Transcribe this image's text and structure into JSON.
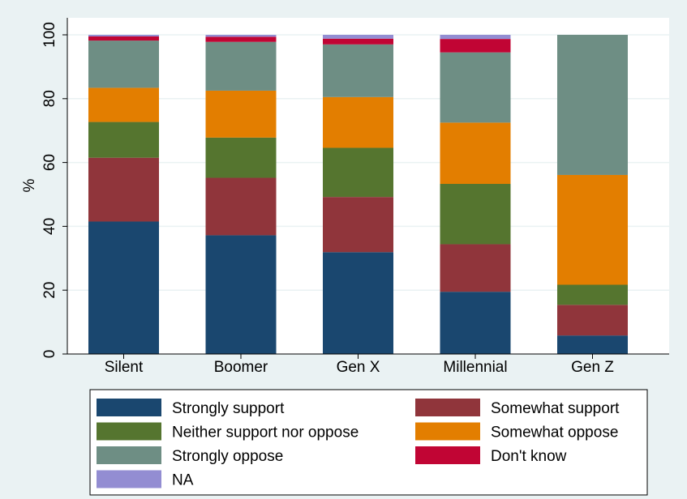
{
  "chart_data": {
    "type": "bar",
    "stacked": true,
    "categories": [
      "Silent",
      "Boomer",
      "Gen X",
      "Millennial",
      "Gen Z"
    ],
    "ylabel": "%",
    "ylim": [
      0,
      100
    ],
    "yticks": [
      0,
      20,
      40,
      60,
      80,
      100
    ],
    "grid": true,
    "legend_position": "bottom",
    "series": [
      {
        "name": "Strongly support",
        "color": "#1a476f",
        "values": [
          41.5,
          37.2,
          31.9,
          19.5,
          5.8
        ]
      },
      {
        "name": "Somewhat support",
        "color": "#90353b",
        "values": [
          20.0,
          18.0,
          17.3,
          14.9,
          9.6
        ]
      },
      {
        "name": "Neither support nor oppose",
        "color": "#55752f",
        "values": [
          11.2,
          12.6,
          15.4,
          18.9,
          6.3
        ]
      },
      {
        "name": "Somewhat oppose",
        "color": "#e37e00",
        "values": [
          10.7,
          14.7,
          15.9,
          19.2,
          34.4
        ]
      },
      {
        "name": "Strongly oppose",
        "color": "#6e8e84",
        "values": [
          14.8,
          15.3,
          16.5,
          22.0,
          43.9
        ]
      },
      {
        "name": "Don't know",
        "color": "#c10534",
        "values": [
          1.3,
          1.6,
          1.8,
          4.2,
          0
        ]
      },
      {
        "name": "NA",
        "color": "#938dd2",
        "values": [
          0.5,
          0.6,
          1.2,
          1.3,
          0
        ]
      }
    ]
  }
}
